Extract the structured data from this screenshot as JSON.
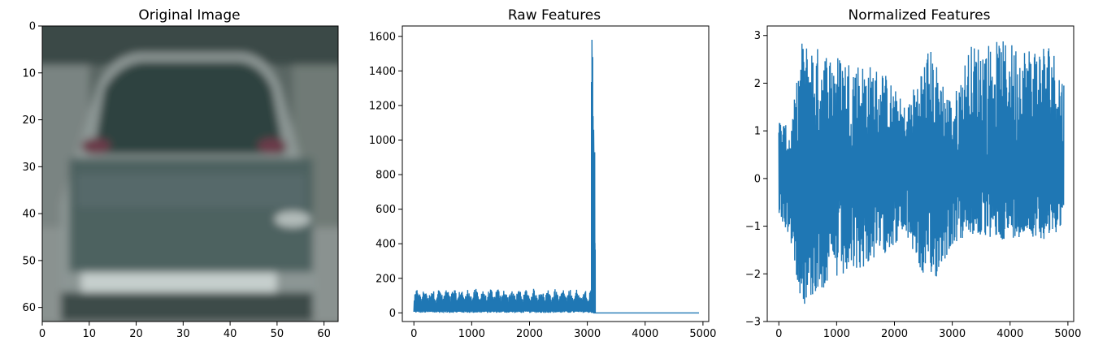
{
  "chart_data": [
    {
      "type": "image",
      "title": "Original Image",
      "xlim": [
        0,
        63
      ],
      "ylim": [
        0,
        63
      ],
      "xticks": [
        0,
        10,
        20,
        30,
        40,
        50,
        60
      ],
      "yticks": [
        0,
        10,
        20,
        30,
        40,
        50,
        60
      ],
      "xtick_labels": [
        "0",
        "10",
        "20",
        "30",
        "40",
        "50",
        "60"
      ],
      "ytick_labels": [
        "0",
        "10",
        "20",
        "30",
        "40",
        "50",
        "60"
      ],
      "content": "rear view of a grey car"
    },
    {
      "type": "line",
      "title": "Raw Features",
      "xlim": [
        -200,
        5100
      ],
      "ylim": [
        -50,
        1660
      ],
      "xticks": [
        0,
        1000,
        2000,
        3000,
        4000,
        5000
      ],
      "yticks": [
        0,
        200,
        400,
        600,
        800,
        1000,
        1200,
        1400,
        1600
      ],
      "xtick_labels": [
        "0",
        "1000",
        "2000",
        "3000",
        "4000",
        "5000"
      ],
      "ytick_labels": [
        "0",
        "200",
        "400",
        "600",
        "800",
        "1000",
        "1200",
        "1400",
        "1600"
      ],
      "color": "#1f77b4",
      "segments": [
        {
          "x_start": 0,
          "x_end": 3072,
          "baseline": 10,
          "peak": 140
        },
        {
          "x_start": 3072,
          "x_end": 3104,
          "peak": 1580
        },
        {
          "x_start": 3104,
          "x_end": 3136,
          "peak": 1060
        },
        {
          "x_start": 3136,
          "x_end": 4932,
          "value": 0
        }
      ]
    },
    {
      "type": "line",
      "title": "Normalized Features",
      "xlim": [
        -200,
        5100
      ],
      "ylim": [
        -3,
        3.2
      ],
      "xticks": [
        0,
        1000,
        2000,
        3000,
        4000,
        5000
      ],
      "yticks": [
        -3,
        -2,
        -1,
        0,
        1,
        2,
        3
      ],
      "xtick_labels": [
        "0",
        "1000",
        "2000",
        "3000",
        "4000",
        "5000"
      ],
      "ytick_labels": [
        "−3",
        "−2",
        "−1",
        "0",
        "1",
        "2",
        "3"
      ],
      "color": "#1f77b4",
      "envelope": [
        {
          "x": 0,
          "min": -0.8,
          "max": 1.3
        },
        {
          "x": 200,
          "min": -1.3,
          "max": 1.0
        },
        {
          "x": 400,
          "min": -2.7,
          "max": 2.9
        },
        {
          "x": 800,
          "min": -2.3,
          "max": 2.7
        },
        {
          "x": 1300,
          "min": -2.0,
          "max": 2.5
        },
        {
          "x": 1800,
          "min": -1.6,
          "max": 2.3
        },
        {
          "x": 2200,
          "min": -1.2,
          "max": 1.5
        },
        {
          "x": 2600,
          "min": -2.4,
          "max": 2.8
        },
        {
          "x": 3000,
          "min": -1.4,
          "max": 1.6
        },
        {
          "x": 3300,
          "min": -1.2,
          "max": 2.8
        },
        {
          "x": 3800,
          "min": -1.3,
          "max": 2.9
        },
        {
          "x": 4300,
          "min": -1.2,
          "max": 2.8
        },
        {
          "x": 4700,
          "min": -1.3,
          "max": 2.9
        },
        {
          "x": 4932,
          "min": -0.9,
          "max": 2.1
        }
      ]
    }
  ]
}
